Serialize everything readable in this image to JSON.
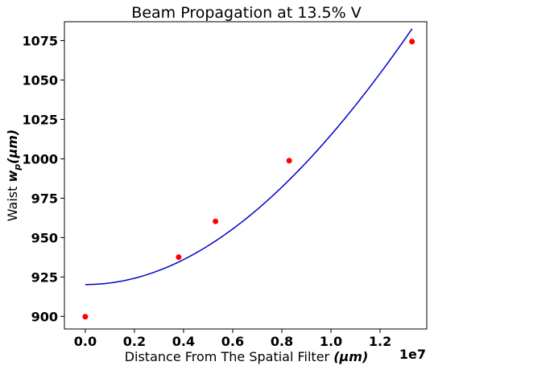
{
  "chart_data": {
    "type": "scatter",
    "title": "Beam Propagation at 13.5% V",
    "xlabel_plain": "Distance From The Spatial Filter ",
    "xlabel_math": "(μm)",
    "ylabel_plain": "Waist ",
    "ylabel_math": "w",
    "ylabel_sub": "p",
    "ylabel_unit": "(μm)",
    "x_offset_label": "1e7",
    "xlim": [
      -0.085,
      1.39
    ],
    "ylim": [
      892,
      1087
    ],
    "x_ticks": [
      0.0,
      0.2,
      0.4,
      0.6,
      0.8,
      1.0,
      1.2
    ],
    "x_tick_labels": [
      "0.0",
      "0.2",
      "0.4",
      "0.6",
      "0.8",
      "1.0",
      "1.2"
    ],
    "y_ticks": [
      900,
      925,
      950,
      975,
      1000,
      1025,
      1050,
      1075
    ],
    "y_tick_labels": [
      "900",
      "925",
      "950",
      "975",
      "1000",
      "1025",
      "1050",
      "1075"
    ],
    "grid": false,
    "series": [
      {
        "kind": "points",
        "color": "#ff0000",
        "x": [
          0.0,
          0.38,
          0.53,
          0.83,
          1.33
        ],
        "y": [
          899.8,
          937.6,
          960.3,
          998.8,
          1074.4
        ]
      },
      {
        "kind": "fit",
        "color": "#0000cc",
        "x_range": [
          0.0,
          1.33
        ],
        "waist_min": 920.2,
        "y_at_end": 1082.5
      }
    ]
  }
}
